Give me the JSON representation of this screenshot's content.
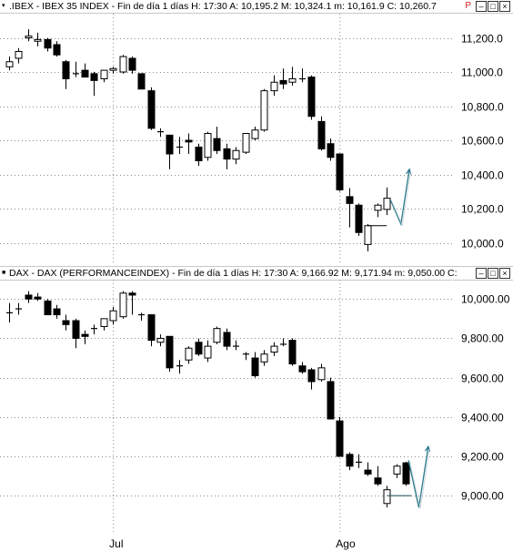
{
  "panels": [
    {
      "id": "ibex",
      "header": {
        "icon": "caret-icon",
        "title": ".IBEX - IBEX 35 INDEX - Fin de día 1 días  H: 17:30  A: 10,195.2  M: 10,324.1  m: 10,161.9  C: 10,260.7",
        "flag": "P"
      }
    },
    {
      "id": "dax",
      "header": {
        "icon": "caret-icon",
        "title": "DAX - DAX (PERFORMANCEINDEX) - Fin de día 1 días  H: 17:30  A: 9,166.92  M: 9,171.94  m: 9,050.00  C:",
        "flag": ""
      }
    }
  ],
  "x_axis": {
    "labels": [
      {
        "text": "Jul",
        "index": 11
      },
      {
        "text": "Ago",
        "index": 35
      }
    ]
  },
  "chart_data": [
    {
      "type": "candlestick",
      "title": ".IBEX - IBEX 35 INDEX",
      "ylim": [
        9880,
        11320
      ],
      "yticks": [
        10000,
        10200,
        10400,
        10600,
        10800,
        11000,
        11200
      ],
      "ytick_labels": [
        "10,000.0",
        "10,200.0",
        "10,400.0",
        "10,600.0",
        "10,800.0",
        "11,000.0",
        "11,200.0"
      ],
      "grid": "dotted",
      "candles": [
        {
          "o": 11030,
          "h": 11090,
          "l": 11010,
          "c": 11060
        },
        {
          "o": 11080,
          "h": 11140,
          "l": 11050,
          "c": 11120
        },
        {
          "o": 11200,
          "h": 11250,
          "l": 11180,
          "c": 11210
        },
        {
          "o": 11180,
          "h": 11230,
          "l": 11150,
          "c": 11190
        },
        {
          "o": 11190,
          "h": 11200,
          "l": 11120,
          "c": 11140
        },
        {
          "o": 11160,
          "h": 11180,
          "l": 11090,
          "c": 11100
        },
        {
          "o": 11060,
          "h": 11070,
          "l": 10900,
          "c": 10960
        },
        {
          "o": 10990,
          "h": 11060,
          "l": 10970,
          "c": 10990
        },
        {
          "o": 11010,
          "h": 11050,
          "l": 10970,
          "c": 10970
        },
        {
          "o": 10990,
          "h": 11000,
          "l": 10860,
          "c": 10950
        },
        {
          "o": 10960,
          "h": 11010,
          "l": 10940,
          "c": 11010
        },
        {
          "o": 11010,
          "h": 11030,
          "l": 10990,
          "c": 11020
        },
        {
          "o": 11000,
          "h": 11100,
          "l": 10990,
          "c": 11090
        },
        {
          "o": 11080,
          "h": 11090,
          "l": 10990,
          "c": 11010
        },
        {
          "o": 10990,
          "h": 10990,
          "l": 10900,
          "c": 10900
        },
        {
          "o": 10890,
          "h": 10910,
          "l": 10660,
          "c": 10670
        },
        {
          "o": 10650,
          "h": 10670,
          "l": 10620,
          "c": 10650
        },
        {
          "o": 10630,
          "h": 10630,
          "l": 10430,
          "c": 10520
        },
        {
          "o": 10560,
          "h": 10620,
          "l": 10520,
          "c": 10560
        },
        {
          "o": 10600,
          "h": 10640,
          "l": 10520,
          "c": 10590
        },
        {
          "o": 10560,
          "h": 10580,
          "l": 10450,
          "c": 10480
        },
        {
          "o": 10500,
          "h": 10650,
          "l": 10480,
          "c": 10640
        },
        {
          "o": 10610,
          "h": 10680,
          "l": 10520,
          "c": 10540
        },
        {
          "o": 10550,
          "h": 10580,
          "l": 10430,
          "c": 10490
        },
        {
          "o": 10490,
          "h": 10560,
          "l": 10460,
          "c": 10540
        },
        {
          "o": 10530,
          "h": 10640,
          "l": 10520,
          "c": 10640
        },
        {
          "o": 10610,
          "h": 10680,
          "l": 10600,
          "c": 10660
        },
        {
          "o": 10660,
          "h": 10900,
          "l": 10650,
          "c": 10890
        },
        {
          "o": 10890,
          "h": 10980,
          "l": 10860,
          "c": 10940
        },
        {
          "o": 10950,
          "h": 11020,
          "l": 10900,
          "c": 10930
        },
        {
          "o": 10940,
          "h": 11030,
          "l": 10920,
          "c": 10960
        },
        {
          "o": 10960,
          "h": 11020,
          "l": 10940,
          "c": 10960
        },
        {
          "o": 10970,
          "h": 10980,
          "l": 10720,
          "c": 10740
        },
        {
          "o": 10710,
          "h": 10740,
          "l": 10540,
          "c": 10550
        },
        {
          "o": 10580,
          "h": 10610,
          "l": 10480,
          "c": 10500
        },
        {
          "o": 10520,
          "h": 10520,
          "l": 10300,
          "c": 10310
        },
        {
          "o": 10270,
          "h": 10320,
          "l": 10090,
          "c": 10230
        },
        {
          "o": 10220,
          "h": 10230,
          "l": 10040,
          "c": 10060
        },
        {
          "o": 9990,
          "h": 10110,
          "l": 9950,
          "c": 10100
        },
        {
          "o": 10190,
          "h": 10230,
          "l": 10150,
          "c": 10220
        },
        {
          "o": 10195.2,
          "h": 10324.1,
          "l": 10161.9,
          "c": 10260.7
        }
      ],
      "annotations": [
        {
          "type": "horizontal-line",
          "x_from": 38,
          "x_to": 40,
          "y": 10100,
          "color": "#000000"
        },
        {
          "type": "projection-arrow",
          "points": [
            [
              40.4,
              10250
            ],
            [
              41.5,
              10110
            ],
            [
              42.4,
              10430
            ]
          ],
          "color": "#2a7a8c"
        }
      ]
    },
    {
      "type": "candlestick",
      "title": "DAX - DAX (PERFORMANCEINDEX)",
      "ylim": [
        8820,
        10080
      ],
      "yticks": [
        9000,
        9200,
        9400,
        9600,
        9800,
        10000
      ],
      "ytick_labels": [
        "9,000.00",
        "9,200.00",
        "9,400.00",
        "9,600.00",
        "9,800.00",
        "10,000.00"
      ],
      "grid": "dotted",
      "candles": [
        {
          "o": 9930,
          "h": 9980,
          "l": 9880,
          "c": 9930
        },
        {
          "o": 9950,
          "h": 9980,
          "l": 9920,
          "c": 9950
        },
        {
          "o": 10020,
          "h": 10040,
          "l": 9980,
          "c": 10000
        },
        {
          "o": 10010,
          "h": 10030,
          "l": 9990,
          "c": 10000
        },
        {
          "o": 9990,
          "h": 10000,
          "l": 9920,
          "c": 9920
        },
        {
          "o": 9950,
          "h": 9970,
          "l": 9900,
          "c": 9920
        },
        {
          "o": 9890,
          "h": 9920,
          "l": 9840,
          "c": 9870
        },
        {
          "o": 9890,
          "h": 9900,
          "l": 9750,
          "c": 9800
        },
        {
          "o": 9820,
          "h": 9840,
          "l": 9770,
          "c": 9810
        },
        {
          "o": 9850,
          "h": 9870,
          "l": 9820,
          "c": 9850
        },
        {
          "o": 9860,
          "h": 9900,
          "l": 9840,
          "c": 9900
        },
        {
          "o": 9890,
          "h": 9960,
          "l": 9870,
          "c": 9940
        },
        {
          "o": 9910,
          "h": 10040,
          "l": 9900,
          "c": 10030
        },
        {
          "o": 10030,
          "h": 10040,
          "l": 9920,
          "c": 10020
        },
        {
          "o": 9920,
          "h": 9930,
          "l": 9890,
          "c": 9920
        },
        {
          "o": 9920,
          "h": 9920,
          "l": 9760,
          "c": 9790
        },
        {
          "o": 9780,
          "h": 9820,
          "l": 9760,
          "c": 9800
        },
        {
          "o": 9810,
          "h": 9810,
          "l": 9630,
          "c": 9650
        },
        {
          "o": 9660,
          "h": 9690,
          "l": 9620,
          "c": 9660
        },
        {
          "o": 9690,
          "h": 9760,
          "l": 9670,
          "c": 9750
        },
        {
          "o": 9780,
          "h": 9800,
          "l": 9710,
          "c": 9720
        },
        {
          "o": 9700,
          "h": 9790,
          "l": 9680,
          "c": 9760
        },
        {
          "o": 9780,
          "h": 9860,
          "l": 9770,
          "c": 9850
        },
        {
          "o": 9830,
          "h": 9850,
          "l": 9740,
          "c": 9760
        },
        {
          "o": 9760,
          "h": 9790,
          "l": 9740,
          "c": 9760
        },
        {
          "o": 9720,
          "h": 9730,
          "l": 9690,
          "c": 9720
        },
        {
          "o": 9700,
          "h": 9730,
          "l": 9600,
          "c": 9610
        },
        {
          "o": 9680,
          "h": 9740,
          "l": 9660,
          "c": 9720
        },
        {
          "o": 9730,
          "h": 9780,
          "l": 9710,
          "c": 9760
        },
        {
          "o": 9770,
          "h": 9800,
          "l": 9760,
          "c": 9770
        },
        {
          "o": 9790,
          "h": 9800,
          "l": 9660,
          "c": 9670
        },
        {
          "o": 9660,
          "h": 9680,
          "l": 9620,
          "c": 9630
        },
        {
          "o": 9640,
          "h": 9650,
          "l": 9540,
          "c": 9580
        },
        {
          "o": 9590,
          "h": 9670,
          "l": 9580,
          "c": 9650
        },
        {
          "o": 9580,
          "h": 9600,
          "l": 9390,
          "c": 9390
        },
        {
          "o": 9380,
          "h": 9400,
          "l": 9200,
          "c": 9200
        },
        {
          "o": 9210,
          "h": 9220,
          "l": 9130,
          "c": 9150
        },
        {
          "o": 9170,
          "h": 9210,
          "l": 9140,
          "c": 9170
        },
        {
          "o": 9130,
          "h": 9170,
          "l": 9100,
          "c": 9110
        },
        {
          "o": 9090,
          "h": 9150,
          "l": 9050,
          "c": 9060
        },
        {
          "o": 8960,
          "h": 9050,
          "l": 8940,
          "c": 9030
        },
        {
          "o": 9110,
          "h": 9160,
          "l": 9090,
          "c": 9150
        },
        {
          "o": 9166.92,
          "h": 9171.94,
          "l": 9050,
          "c": 9060
        }
      ],
      "annotations": [
        {
          "type": "horizontal-line",
          "x_from": 40,
          "x_to": 42.6,
          "y": 9000,
          "color": "#1f4d59"
        },
        {
          "type": "projection-arrow",
          "points": [
            [
              42.3,
              9180
            ],
            [
              43.4,
              8940
            ],
            [
              44.4,
              9250
            ]
          ],
          "color": "#2a7a8c"
        }
      ]
    }
  ]
}
